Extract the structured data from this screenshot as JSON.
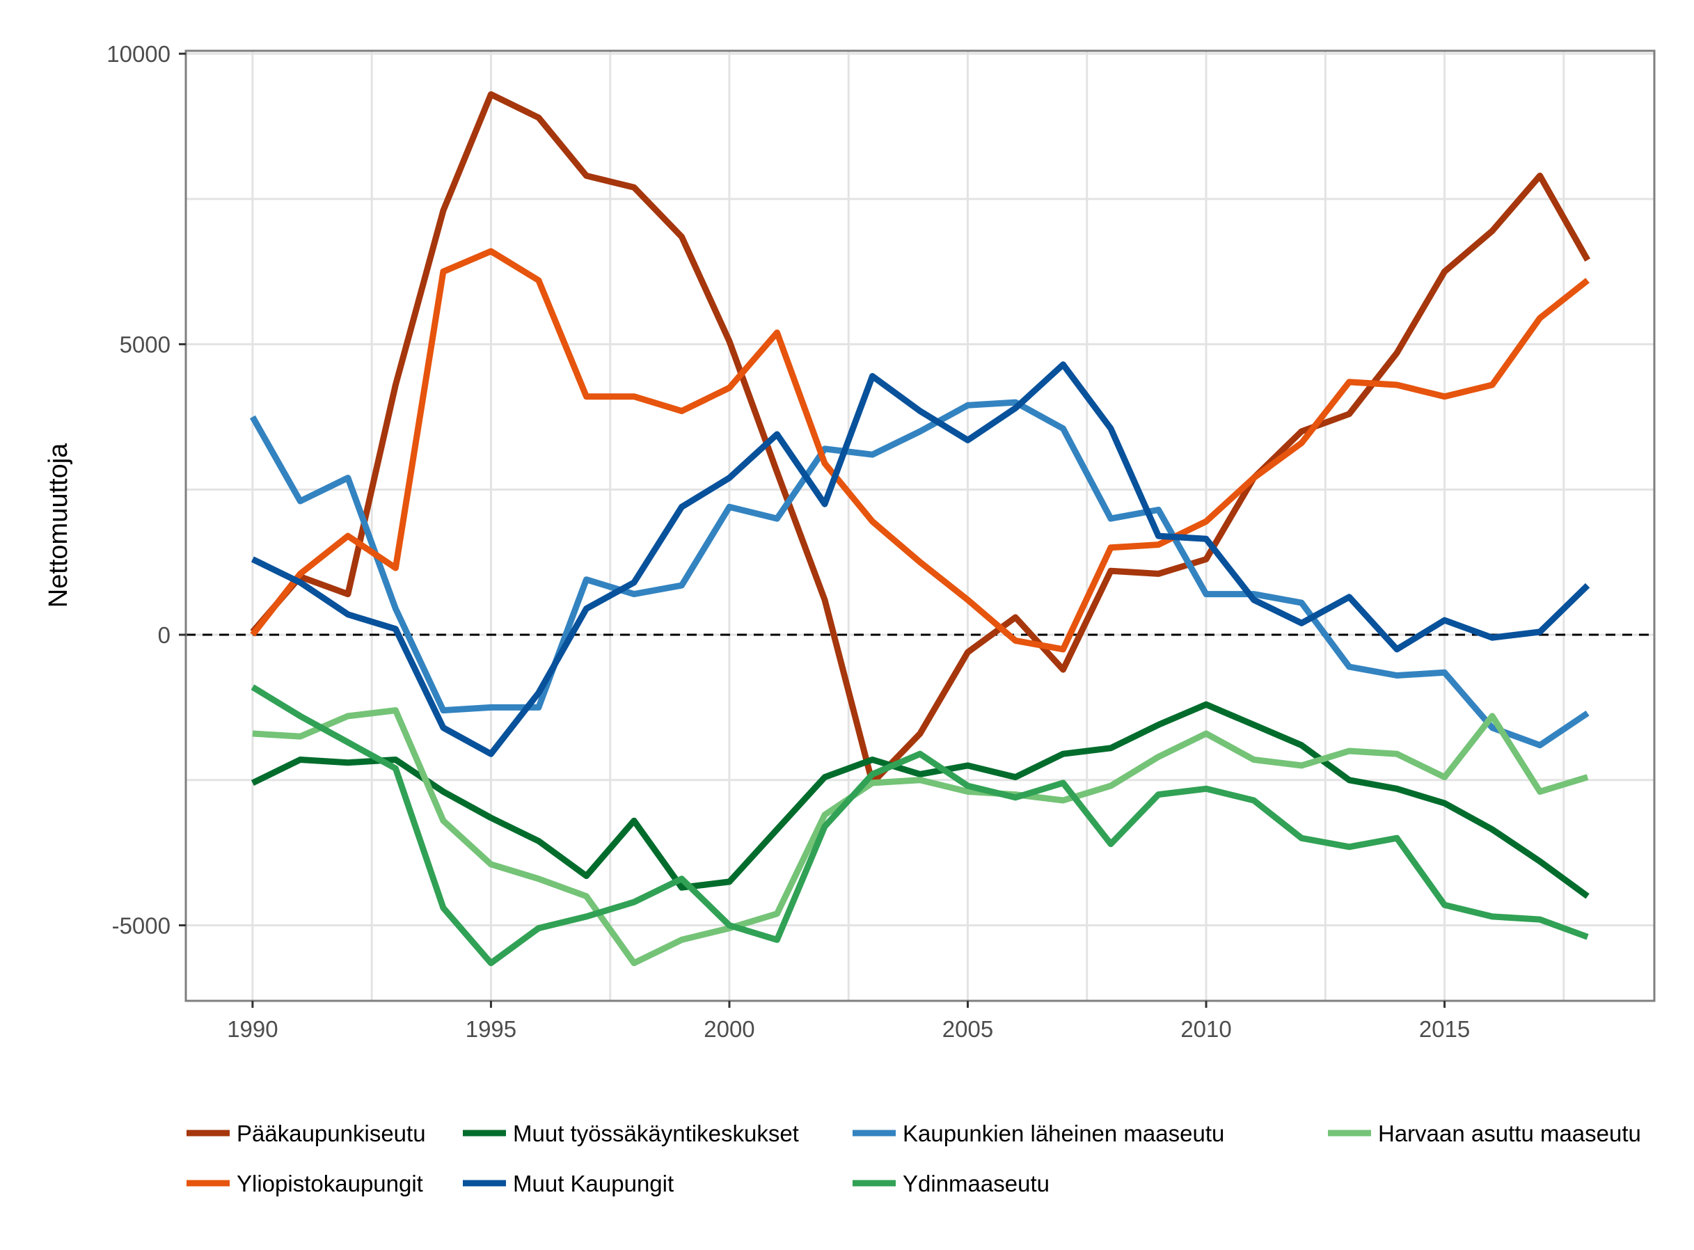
{
  "chart_data": {
    "type": "line",
    "title": "",
    "xlabel": "",
    "ylabel": "Nettomuuttoja",
    "xlim": [
      1988.6,
      2019.4
    ],
    "ylim": [
      -6300,
      10050
    ],
    "xticks": [
      1990,
      1995,
      2000,
      2005,
      2010,
      2015
    ],
    "yticks": [
      -5000,
      0,
      5000,
      10000
    ],
    "xtick_labels": [
      "1990",
      "1995",
      "2000",
      "2005",
      "2010",
      "2015"
    ],
    "ytick_labels": [
      "-5000",
      "0",
      "5000",
      "10000"
    ],
    "grid": true,
    "reference_line": {
      "y": 0,
      "style": "dashed"
    },
    "legend_position": "bottom",
    "x": [
      1990,
      1991,
      1992,
      1993,
      1994,
      1995,
      1996,
      1997,
      1998,
      1999,
      2000,
      2001,
      2002,
      2003,
      2004,
      2005,
      2006,
      2007,
      2008,
      2009,
      2010,
      2011,
      2012,
      2013,
      2014,
      2015,
      2016,
      2017,
      2018
    ],
    "series": [
      {
        "name": "Pääkaupunkiseutu",
        "color": "#a6360c",
        "values": [
          50,
          1000,
          700,
          4300,
          7300,
          9300,
          8900,
          7900,
          7700,
          6850,
          5050,
          2800,
          600,
          -2550,
          -1700,
          -300,
          300,
          -600,
          1100,
          1050,
          1300,
          2700,
          3500,
          3800,
          4850,
          6250,
          6950,
          7900,
          6450
        ]
      },
      {
        "name": "Muut työssäkäyntikeskukset",
        "color": "#016c2c",
        "values": [
          -2550,
          -2150,
          -2200,
          -2150,
          -2700,
          -3150,
          -3550,
          -4150,
          -3200,
          -4350,
          -4250,
          -3350,
          -2450,
          -2150,
          -2400,
          -2250,
          -2450,
          -2050,
          -1950,
          -1550,
          -1200,
          -1550,
          -1900,
          -2500,
          -2650,
          -2900,
          -3350,
          -3900,
          -4500
        ]
      },
      {
        "name": "Kaupunkien läheinen maaseutu",
        "color": "#3383c0",
        "values": [
          3750,
          2300,
          2700,
          450,
          -1300,
          -1250,
          -1250,
          950,
          700,
          850,
          2200,
          2000,
          3200,
          3100,
          3500,
          3950,
          4000,
          3550,
          2000,
          2150,
          700,
          700,
          550,
          -550,
          -700,
          -650,
          -1600,
          -1900,
          -1350
        ]
      },
      {
        "name": "Harvaan asuttu maaseutu",
        "color": "#74c377",
        "values": [
          -1700,
          -1750,
          -1400,
          -1300,
          -3200,
          -3950,
          -4200,
          -4500,
          -5650,
          -5250,
          -5050,
          -4800,
          -3100,
          -2550,
          -2500,
          -2700,
          -2750,
          -2850,
          -2600,
          -2100,
          -1700,
          -2150,
          -2250,
          -2000,
          -2050,
          -2450,
          -1400,
          -2700,
          -2450
        ]
      },
      {
        "name": "Yliopistokaupungit",
        "color": "#e6540d",
        "values": [
          0,
          1050,
          1700,
          1150,
          6250,
          6600,
          6100,
          4100,
          4100,
          3850,
          4250,
          5200,
          2950,
          1950,
          1250,
          600,
          -100,
          -250,
          1500,
          1550,
          1950,
          2700,
          3300,
          4350,
          4300,
          4100,
          4300,
          5450,
          6100
        ]
      },
      {
        "name": "Muut Kaupungit",
        "color": "#08519b",
        "values": [
          1300,
          900,
          350,
          100,
          -1600,
          -2050,
          -1000,
          450,
          900,
          2200,
          2700,
          3450,
          2250,
          4450,
          3850,
          3350,
          3900,
          4650,
          3550,
          1700,
          1650,
          600,
          200,
          650,
          -250,
          250,
          -50,
          50,
          850
        ]
      },
      {
        "name": "Ydinmaaseutu",
        "color": "#31a155",
        "values": [
          -900,
          -1400,
          -1850,
          -2300,
          -4700,
          -5650,
          -5050,
          -4850,
          -4600,
          -4200,
          -5000,
          -5250,
          -3300,
          -2400,
          -2050,
          -2600,
          -2800,
          -2550,
          -3600,
          -2750,
          -2650,
          -2850,
          -3500,
          -3650,
          -3500,
          -4650,
          -4850,
          -4900,
          -5200
        ]
      }
    ]
  }
}
